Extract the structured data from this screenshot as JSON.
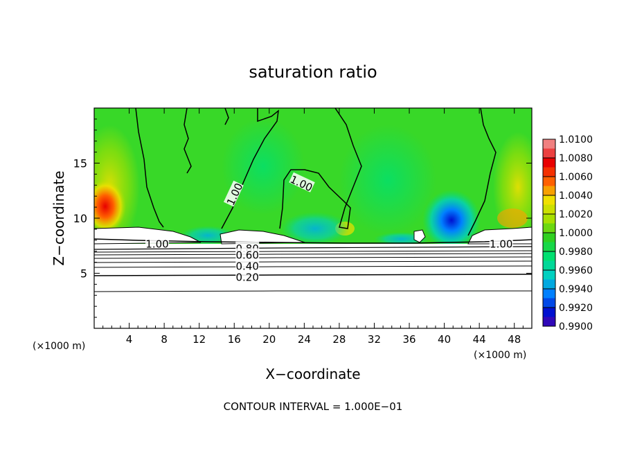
{
  "chart_data": {
    "type": "heatmap",
    "title": "saturation ratio",
    "xlabel": "X−coordinate",
    "ylabel": "Z−coordinate",
    "x_unit_left": "(×1000 m)",
    "x_unit_right": "(×1000 m)",
    "xlim": [
      0,
      50
    ],
    "ylim": [
      0,
      20
    ],
    "x_ticks": [
      4,
      8,
      12,
      16,
      20,
      24,
      28,
      32,
      36,
      40,
      44,
      48
    ],
    "y_ticks": [
      5,
      10,
      15
    ],
    "colorbar": {
      "levels": [
        "1.0100",
        "1.0080",
        "1.0060",
        "1.0040",
        "1.0020",
        "1.0000",
        "0.9980",
        "0.9960",
        "0.9940",
        "0.9920",
        "0.9900"
      ],
      "colors": [
        "#f08080",
        "#e80000",
        "#ff6000",
        "#f0e000",
        "#a8e000",
        "#30d020",
        "#00e070",
        "#00d0c0",
        "#0080ff",
        "#0010d0",
        "#6000a0"
      ]
    },
    "contour_labels": [
      {
        "text": "1.00",
        "x": 16.0,
        "z": 12.2,
        "angle": -65
      },
      {
        "text": "1.00",
        "x": 23.7,
        "z": 13.2,
        "angle": 25
      },
      {
        "text": "1.00",
        "x": 7.2,
        "z": 7.7,
        "angle": 0
      },
      {
        "text": "1.00",
        "x": 46.5,
        "z": 7.7,
        "angle": 0
      },
      {
        "text": "0.80",
        "x": 17.5,
        "z": 7.3,
        "angle": 0
      },
      {
        "text": "0.60",
        "x": 17.5,
        "z": 6.7,
        "angle": 0
      },
      {
        "text": "0.40",
        "x": 17.5,
        "z": 5.7,
        "angle": 0
      },
      {
        "text": "0.20",
        "x": 17.5,
        "z": 4.7,
        "angle": 0
      }
    ],
    "contour_interval_text": "CONTOUR INTERVAL = 1.000E−01"
  }
}
